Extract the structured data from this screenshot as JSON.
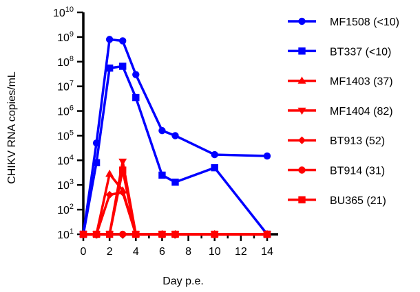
{
  "chart_data": {
    "type": "line",
    "xlabel": "Day p.e.",
    "ylabel": "CHIKV RNA copies/mL",
    "y_scale": "log10",
    "xlim": [
      0,
      14
    ],
    "ylim": [
      10,
      10000000000
    ],
    "x_ticks": [
      "0",
      "2",
      "4",
      "6",
      "8",
      "10",
      "12",
      "14"
    ],
    "y_ticks": [
      {
        "base": "10",
        "exp": "1"
      },
      {
        "base": "10",
        "exp": "2"
      },
      {
        "base": "10",
        "exp": "3"
      },
      {
        "base": "10",
        "exp": "4"
      },
      {
        "base": "10",
        "exp": "5"
      },
      {
        "base": "10",
        "exp": "6"
      },
      {
        "base": "10",
        "exp": "7"
      },
      {
        "base": "10",
        "exp": "8"
      },
      {
        "base": "10",
        "exp": "9"
      },
      {
        "base": "10",
        "exp": "10"
      }
    ],
    "grid": false,
    "legend_position": "right",
    "series": [
      {
        "name": "MF1508 (<10)",
        "color": "#0000ff",
        "marker": "circle",
        "x": [
          0,
          1,
          2,
          3,
          4,
          6,
          7,
          10,
          14
        ],
        "y": [
          10,
          50000,
          800000000,
          700000000,
          30000000,
          160000,
          100000,
          17000,
          15000
        ]
      },
      {
        "name": "BT337 (<10)",
        "color": "#0000ff",
        "marker": "square",
        "x": [
          0,
          1,
          2,
          3,
          4,
          6,
          7,
          10,
          14
        ],
        "y": [
          10,
          8000,
          55000000,
          65000000,
          3500000,
          2500,
          1300,
          5000,
          10
        ]
      },
      {
        "name": "MF1403 (37)",
        "color": "#ff0000",
        "marker": "triangle-up",
        "x": [
          0,
          1,
          2,
          3,
          4,
          6,
          7,
          10,
          14
        ],
        "y": [
          10,
          10,
          2800,
          600,
          10,
          10,
          10,
          10,
          10
        ]
      },
      {
        "name": "MF1404 (82)",
        "color": "#ff0000",
        "marker": "triangle-down",
        "x": [
          0,
          1,
          2,
          3,
          4,
          6,
          7,
          10,
          14
        ],
        "y": [
          10,
          10,
          10,
          9000,
          10,
          10,
          10,
          10,
          10
        ]
      },
      {
        "name": "BT913 (52)",
        "color": "#ff0000",
        "marker": "diamond",
        "x": [
          0,
          1,
          2,
          3,
          4,
          6,
          7,
          10,
          14
        ],
        "y": [
          10,
          10,
          400,
          500,
          10,
          10,
          10,
          10,
          10
        ]
      },
      {
        "name": "BT914 (31)",
        "color": "#ff0000",
        "marker": "circle",
        "x": [
          0,
          1,
          2,
          3,
          4,
          6,
          7,
          10,
          14
        ],
        "y": [
          10,
          10,
          10,
          10,
          10,
          10,
          10,
          10,
          10
        ]
      },
      {
        "name": "BU365 (21)",
        "color": "#ff0000",
        "marker": "square",
        "x": [
          0,
          1,
          2,
          3,
          4,
          6,
          7,
          10,
          14
        ],
        "y": [
          10,
          10,
          10,
          4000,
          10,
          10,
          10,
          10,
          10
        ]
      }
    ]
  }
}
